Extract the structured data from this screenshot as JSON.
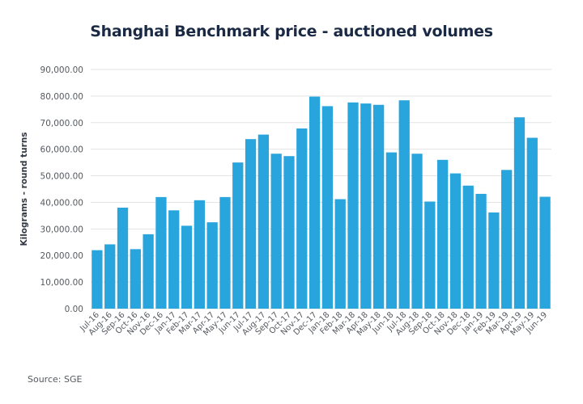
{
  "chart_data": {
    "type": "bar",
    "title": "Shanghai Benchmark price - auctioned volumes",
    "xlabel": "",
    "ylabel": "Kilograms - round turns",
    "ylim": [
      0,
      90000
    ],
    "yticks": [
      0,
      10000,
      20000,
      30000,
      40000,
      50000,
      60000,
      70000,
      80000,
      90000
    ],
    "ytick_labels": [
      "0.00",
      "10,000.00",
      "20,000.00",
      "30,000.00",
      "40,000.00",
      "50,000.00",
      "60,000.00",
      "70,000.00",
      "80,000.00",
      "90,000.00"
    ],
    "grid": true,
    "legend": "none",
    "bar_color": "#29a5de",
    "categories": [
      "Jul-16",
      "Aug-16",
      "Sep-16",
      "Oct-16",
      "Nov-16",
      "Dec-16",
      "Jan-17",
      "Feb-17",
      "Mar-17",
      "Apr-17",
      "May-17",
      "Jun-17",
      "Jul-17",
      "Aug-17",
      "Sep-17",
      "Oct-17",
      "Nov-17",
      "Dec-17",
      "Jan-18",
      "Feb-18",
      "Mar-18",
      "Apr-18",
      "May-18",
      "Jun-18",
      "Jul-18",
      "Aug-18",
      "Sep-18",
      "Oct-18",
      "Nov-18",
      "Dec-18",
      "Jan-19",
      "Feb-19",
      "Mar-19",
      "Apr-19",
      "May-19",
      "Jun-19"
    ],
    "values": [
      22000,
      24200,
      38000,
      22400,
      28000,
      42000,
      37000,
      31200,
      40800,
      32500,
      42000,
      55000,
      63800,
      65500,
      58300,
      57400,
      67800,
      79800,
      76200,
      41200,
      77600,
      77200,
      76700,
      58800,
      78400,
      58300,
      40300,
      56000,
      50900,
      46300,
      43200,
      36200,
      52200,
      72000,
      64300,
      42100
    ],
    "source": "Source: SGE"
  }
}
